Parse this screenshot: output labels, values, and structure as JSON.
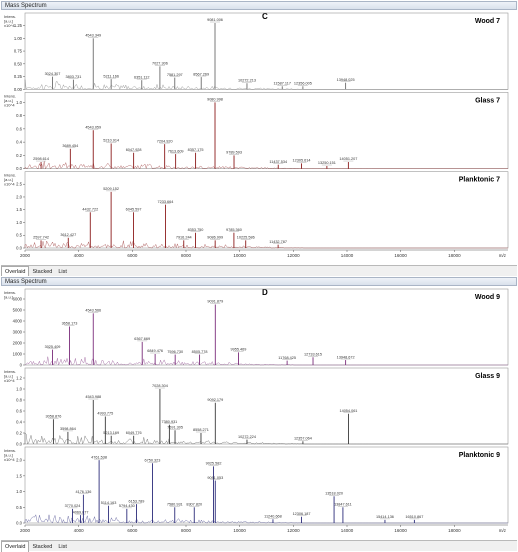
{
  "window_title": "Mass Spectrum",
  "tabs": [
    "Overlaid",
    "Stacked",
    "List"
  ],
  "axis": {
    "ylabel_top": "Intens.",
    "ylabel_unit": "[a.u.]",
    "xunit": "m/z",
    "xticks": [
      "2000",
      "4000",
      "6000",
      "8000",
      "10000",
      "12000",
      "14000",
      "16000",
      "18000"
    ]
  },
  "colors": {
    "wood": "#6b6b6b",
    "glass_c": "#8b1a1a",
    "plank_c": "#8b1a1a",
    "wood_d": "#7a2c7a",
    "glass_d": "#3a3a3a",
    "plank_d": "#2c2c7a"
  },
  "chart_data": [
    {
      "type": "line",
      "panel_letter": "C",
      "xlim": [
        2000,
        20000
      ],
      "series": [
        {
          "name": "Wood 7",
          "exp": "x10^4",
          "yticks": [
            "0.00",
            "0.25",
            "0.50",
            "0.75",
            "1.00",
            "1.25"
          ],
          "ymax": 1.3,
          "peaks": [
            [
              3024.307,
              0.25
            ],
            [
              3803.731,
              0.19
            ],
            [
              4543.349,
              1.0
            ],
            [
              5211.166,
              0.2
            ],
            [
              6351.112,
              0.18
            ],
            [
              7027.306,
              0.45
            ],
            [
              7581.297,
              0.23
            ],
            [
              8567.269,
              0.24
            ],
            [
              9081.006,
              1.3
            ],
            [
              10272.213,
              0.12
            ],
            [
              11587.117,
              0.06
            ],
            [
              12356.005,
              0.06
            ],
            [
              13948.025,
              0.13
            ]
          ],
          "labels": [
            "3024.307",
            "3803.731",
            "4543.349",
            "5211.166",
            "6351.112",
            "7027.306",
            "7581.297",
            "8567.269",
            "9081.006",
            "10272.213",
            "11587.117",
            "12356.005",
            "13948.025"
          ]
        },
        {
          "name": "Glass 7",
          "exp": "x10^4",
          "yticks": [
            "0.0",
            "0.2",
            "0.4",
            "0.6",
            "0.8",
            "1.0"
          ],
          "ymax": 1.0,
          "peaks": [
            [
              2598.614,
              0.1
            ],
            [
              3689.454,
              0.3
            ],
            [
              4543.059,
              0.58
            ],
            [
              5210.914,
              0.38
            ],
            [
              6047.928,
              0.24
            ],
            [
              7204.92,
              0.37
            ],
            [
              7613.609,
              0.22
            ],
            [
              8357.175,
              0.24
            ],
            [
              9080.998,
              1.0
            ],
            [
              9789.593,
              0.2
            ],
            [
              11437.534,
              0.06
            ],
            [
              12305.614,
              0.08
            ],
            [
              13250.151,
              0.04
            ],
            [
              14051.207,
              0.1
            ]
          ],
          "labels": [
            "2598.614",
            "3689.454",
            "4543.059",
            "5210.914",
            "6047.928",
            "7204.920",
            "7613.609",
            "8357.175",
            "9080.998",
            "9789.593",
            "11437.534",
            "12305.614",
            "13250.151",
            "14051.207"
          ]
        },
        {
          "name": "Planktonic 7",
          "exp": "x10^4",
          "yticks": [
            "0.0",
            "0.5",
            "1.0",
            "1.5",
            "2.0",
            "2.5"
          ],
          "ymax": 2.6,
          "peaks": [
            [
              2597.742,
              0.3
            ],
            [
              3612.427,
              0.4
            ],
            [
              4432.722,
              1.4
            ],
            [
              5209.152,
              2.2
            ],
            [
              6045.597,
              1.4
            ],
            [
              7233.664,
              1.7
            ],
            [
              7916.244,
              0.3
            ],
            [
              8353.75,
              0.6
            ],
            [
              9086.999,
              0.3
            ],
            [
              9785.36,
              0.6
            ],
            [
              10225.586,
              0.3
            ],
            [
              11432.787,
              0.13
            ]
          ],
          "labels": [
            "2597.742",
            "3612.427",
            "4432.722",
            "5209.152",
            "6045.597",
            "7233.664",
            "7916.244",
            "8353.750",
            "9086.999",
            "9785.360",
            "10225.586",
            "11432.787"
          ]
        }
      ]
    },
    {
      "type": "line",
      "panel_letter": "D",
      "xlim": [
        2000,
        20000
      ],
      "series": [
        {
          "name": "Wood 9",
          "exp": "",
          "yticks": [
            "0",
            "1000",
            "2000",
            "3000",
            "4000",
            "5000",
            "6000"
          ],
          "ymax": 6000,
          "peaks": [
            [
              3025.409,
              1400
            ],
            [
              3658.173,
              3500
            ],
            [
              4543.566,
              4700
            ],
            [
              6367.669,
              2100
            ],
            [
              6849.476,
              1000
            ],
            [
              7596.73,
              950
            ],
            [
              8505.778,
              950
            ],
            [
              9091.879,
              5500
            ],
            [
              9955.469,
              1150
            ],
            [
              11768.425,
              400
            ],
            [
              12733.615,
              700
            ],
            [
              13948.672,
              450
            ]
          ],
          "labels": [
            "3025.409",
            "3658.173",
            "4543.566",
            "6367.669",
            "6849.476",
            "7596.730",
            "8505.778",
            "9091.879",
            "9955.469",
            "11768.425",
            "12733.615",
            "13948.672"
          ]
        },
        {
          "name": "Glass 9",
          "exp": "x10^4",
          "yticks": [
            "0.0",
            "0.2",
            "0.4",
            "0.6",
            "0.8",
            "1.0",
            "1.2"
          ],
          "ymax": 1.2,
          "peaks": [
            [
              3058.876,
              0.45
            ],
            [
              3598.864,
              0.22
            ],
            [
              4543.988,
              0.8
            ],
            [
              4993.775,
              0.5
            ],
            [
              5213.169,
              0.15
            ],
            [
              6049.776,
              0.15
            ],
            [
              7028.304,
              1.0
            ],
            [
              7380.931,
              0.35
            ],
            [
              7591.305,
              0.25
            ],
            [
              8558.271,
              0.2
            ],
            [
              9092.179,
              0.75
            ],
            [
              10272.224,
              0.08
            ],
            [
              12357.064,
              0.05
            ],
            [
              14054.061,
              0.55
            ]
          ],
          "labels": [
            "3058.876",
            "3598.864",
            "4543.988",
            "4993.775",
            "5213.169",
            "6049.776",
            "7028.304",
            "7380.931",
            "7591.305",
            "8558.271",
            "9092.179",
            "10272.224",
            "12357.064",
            "14054.061"
          ]
        },
        {
          "name": "Planktonic 9",
          "exp": "x10^4",
          "yticks": [
            "0.0",
            "0.5",
            "1.0",
            "1.5",
            "2.0"
          ],
          "ymax": 2.1,
          "peaks": [
            [
              3770.024,
              0.45
            ],
            [
              4069.677,
              0.25
            ],
            [
              4176.136,
              0.9
            ],
            [
              4761.538,
              2.0
            ],
            [
              5114.163,
              0.55
            ],
            [
              5794.43,
              0.45
            ],
            [
              6153.789,
              0.6
            ],
            [
              6750.323,
              1.9
            ],
            [
              7580.931,
              0.5
            ],
            [
              8307.82,
              0.5
            ],
            [
              9025.582,
              1.8
            ],
            [
              9091.053,
              1.35
            ],
            [
              11240.668,
              0.12
            ],
            [
              12306.187,
              0.2
            ],
            [
              13518.02,
              0.85
            ],
            [
              13847.611,
              0.5
            ],
            [
              15414.136,
              0.1
            ],
            [
              16510.867,
              0.1
            ]
          ],
          "labels": [
            "3770.024",
            "4069.677",
            "4176.136",
            "4761.538",
            "5114.163",
            "5794.430",
            "6153.789",
            "6750.323",
            "7580.931",
            "8307.820",
            "9025.582",
            "9091.053",
            "11240.668",
            "12306.187",
            "13518.020",
            "13847.611",
            "15414.136",
            "16510.867"
          ]
        }
      ]
    }
  ]
}
